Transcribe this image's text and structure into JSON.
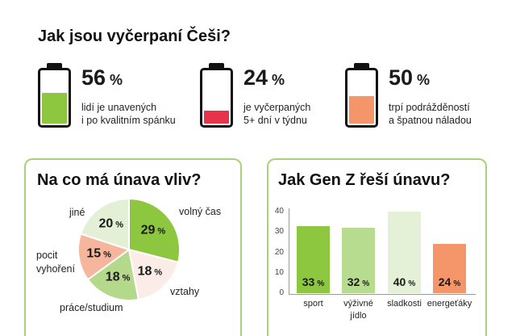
{
  "title": "Jak jsou vyčerpaní Češi?",
  "stats": [
    {
      "icon": "battery-icon",
      "value": 56,
      "unit": "%",
      "lines": [
        "lidí je unavených",
        "i po kvalitním spánku"
      ],
      "color": "#8dc63f"
    },
    {
      "icon": "battery-icon",
      "value": 24,
      "unit": "%",
      "lines": [
        "je vyčerpaných",
        "5+ dní v týdnu"
      ],
      "color": "#e7344b"
    },
    {
      "icon": "battery-icon",
      "value": 50,
      "unit": "%",
      "lines": [
        "trpí podrážděností",
        "a špatnou náladou"
      ],
      "color": "#f4956a"
    }
  ],
  "colors": {
    "panel_border": "#a8d279",
    "text": "#1a1a1a",
    "battery_outline": "#111111"
  },
  "chart_data": [
    {
      "type": "pie",
      "title": "Na co má únava vliv?",
      "unit": "%",
      "slices": [
        {
          "label": "volný čas",
          "value": 29,
          "color": "#8dc63f"
        },
        {
          "label": "vztahy",
          "value": 18,
          "color": "#fcece7"
        },
        {
          "label": "práce/studium",
          "value": 18,
          "color": "#b5d98b"
        },
        {
          "label": "pocit vyhoření",
          "value": 15,
          "color": "#f6b59d"
        },
        {
          "label": "jiné",
          "value": 20,
          "color": "#e4f0d6"
        }
      ]
    },
    {
      "type": "bar",
      "title": "Jak Gen Z řeší únavu?",
      "categories": [
        "sport",
        "výživné jídlo",
        "sladkosti",
        "energeťáky"
      ],
      "values": [
        33,
        32,
        40,
        24
      ],
      "unit": "%",
      "colors": [
        "#8dc63f",
        "#b8dc8f",
        "#e5f1d7",
        "#f4956a"
      ],
      "ylim": [
        0,
        40
      ],
      "yticks": [
        0,
        10,
        20,
        30,
        40
      ],
      "grid": false
    }
  ]
}
